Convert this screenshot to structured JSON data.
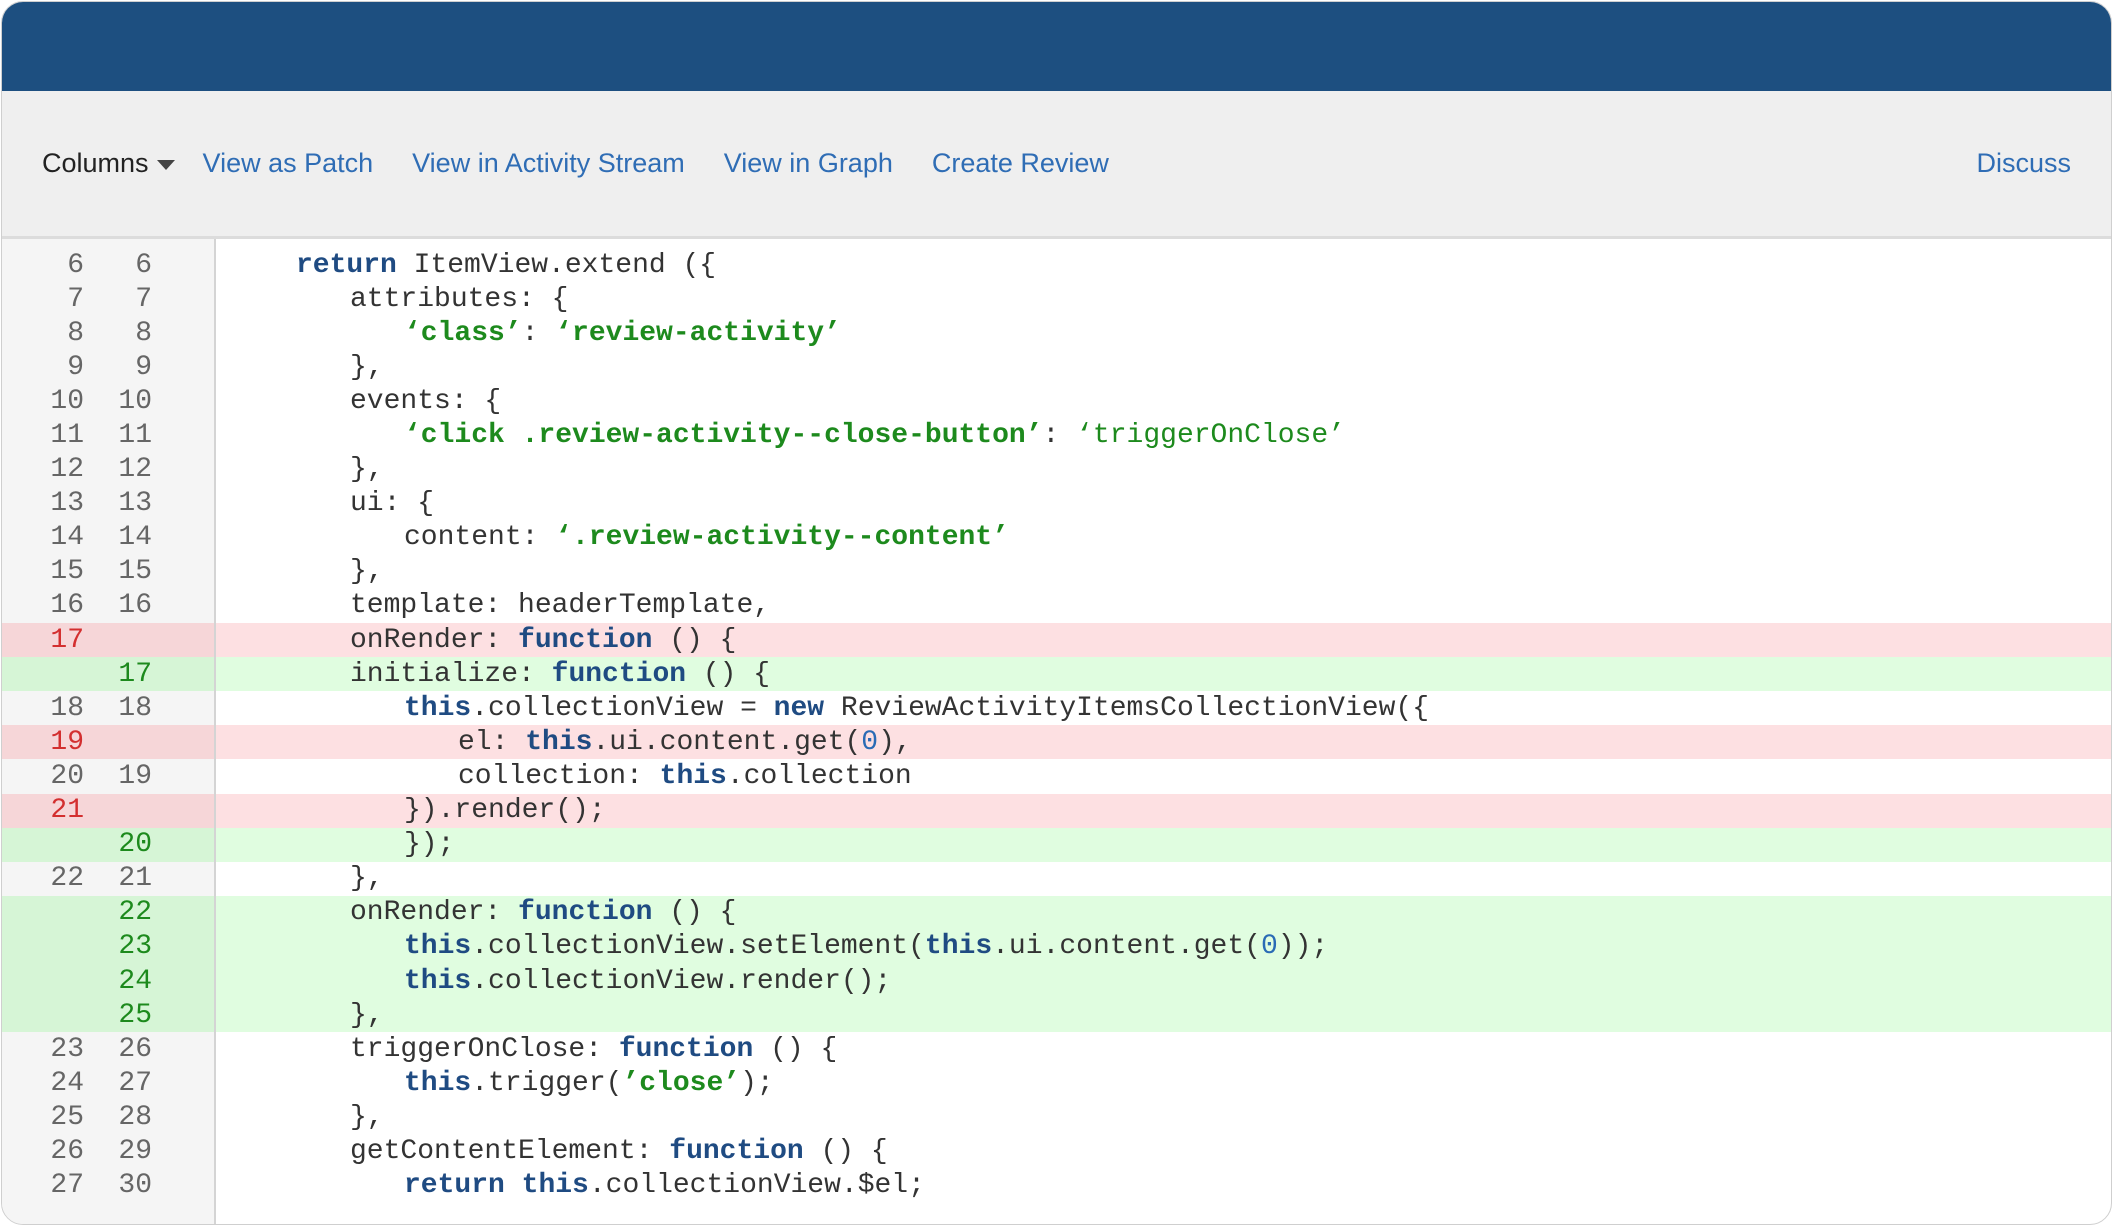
{
  "colors": {
    "header": "#1d4f80",
    "link": "#2f6db5",
    "deleted_bg": "#fde0e2",
    "added_bg": "#e0fde0",
    "keyword": "#1f4b82",
    "string": "#1d8a1d"
  },
  "toolbar": {
    "columns_label": "Columns",
    "columns_icon": "caret-down-icon",
    "links": [
      "View as Patch",
      "View in Activity Stream",
      "View in Graph",
      "Create Review"
    ],
    "discuss_label": "Discuss"
  },
  "diff": {
    "lines": [
      {
        "old": "6",
        "new": "6",
        "type": "ctx",
        "indent": 1,
        "tokens": [
          [
            "kw",
            "return"
          ],
          [
            "p",
            " ItemView.extend ({"
          ]
        ]
      },
      {
        "old": "7",
        "new": "7",
        "type": "ctx",
        "indent": 2,
        "tokens": [
          [
            "p",
            "attributes: {"
          ]
        ]
      },
      {
        "old": "8",
        "new": "8",
        "type": "ctx",
        "indent": 3,
        "tokens": [
          [
            "str",
            "‘class’"
          ],
          [
            "p",
            ": "
          ],
          [
            "str",
            "‘review-activity’"
          ]
        ]
      },
      {
        "old": "9",
        "new": "9",
        "type": "ctx",
        "indent": 2,
        "tokens": [
          [
            "p",
            "},"
          ]
        ]
      },
      {
        "old": "10",
        "new": "10",
        "type": "ctx",
        "indent": 2,
        "tokens": [
          [
            "p",
            "events: {"
          ]
        ]
      },
      {
        "old": "11",
        "new": "11",
        "type": "ctx",
        "indent": 3,
        "tokens": [
          [
            "str",
            "‘click .review-activity--close-button’"
          ],
          [
            "p",
            ": "
          ],
          [
            "str2",
            "‘triggerOnClose’"
          ]
        ]
      },
      {
        "old": "12",
        "new": "12",
        "type": "ctx",
        "indent": 2,
        "tokens": [
          [
            "p",
            "},"
          ]
        ]
      },
      {
        "old": "13",
        "new": "13",
        "type": "ctx",
        "indent": 2,
        "tokens": [
          [
            "p",
            "ui: {"
          ]
        ]
      },
      {
        "old": "14",
        "new": "14",
        "type": "ctx",
        "indent": 3,
        "tokens": [
          [
            "p",
            "content: "
          ],
          [
            "str",
            "‘.review-activity--content’"
          ]
        ]
      },
      {
        "old": "15",
        "new": "15",
        "type": "ctx",
        "indent": 2,
        "tokens": [
          [
            "p",
            "},"
          ]
        ]
      },
      {
        "old": "16",
        "new": "16",
        "type": "ctx",
        "indent": 2,
        "tokens": [
          [
            "p",
            "template: headerTemplate,"
          ]
        ]
      },
      {
        "old": "17",
        "new": "",
        "type": "del",
        "indent": 2,
        "tokens": [
          [
            "p",
            "onRender: "
          ],
          [
            "kw",
            "function"
          ],
          [
            "p",
            " () {"
          ]
        ]
      },
      {
        "old": "",
        "new": "17",
        "type": "add",
        "indent": 2,
        "tokens": [
          [
            "p",
            "initialize: "
          ],
          [
            "kw",
            "function"
          ],
          [
            "p",
            " () {"
          ]
        ]
      },
      {
        "old": "18",
        "new": "18",
        "type": "ctx",
        "indent": 3,
        "tokens": [
          [
            "kw",
            "this"
          ],
          [
            "p",
            ".collectionView = "
          ],
          [
            "kw",
            "new"
          ],
          [
            "p",
            " ReviewActivityItemsCollectionView({"
          ]
        ]
      },
      {
        "old": "19",
        "new": "",
        "type": "del",
        "indent": 4,
        "tokens": [
          [
            "p",
            "el: "
          ],
          [
            "kw",
            "this"
          ],
          [
            "p",
            ".ui.content.get("
          ],
          [
            "num",
            "0"
          ],
          [
            "p",
            "),"
          ]
        ]
      },
      {
        "old": "20",
        "new": "19",
        "type": "ctx",
        "indent": 4,
        "tokens": [
          [
            "p",
            "collection: "
          ],
          [
            "kw",
            "this"
          ],
          [
            "p",
            ".collection"
          ]
        ]
      },
      {
        "old": "21",
        "new": "",
        "type": "del",
        "indent": 3,
        "tokens": [
          [
            "p",
            "}).render();"
          ]
        ]
      },
      {
        "old": "",
        "new": "20",
        "type": "add",
        "indent": 3,
        "tokens": [
          [
            "p",
            "});"
          ]
        ]
      },
      {
        "old": "22",
        "new": "21",
        "type": "ctx",
        "indent": 2,
        "tokens": [
          [
            "p",
            "},"
          ]
        ]
      },
      {
        "old": "",
        "new": "22",
        "type": "add",
        "indent": 2,
        "tokens": [
          [
            "p",
            "onRender: "
          ],
          [
            "kw",
            "function"
          ],
          [
            "p",
            " () {"
          ]
        ]
      },
      {
        "old": "",
        "new": "23",
        "type": "add",
        "indent": 3,
        "tokens": [
          [
            "kw",
            "this"
          ],
          [
            "p",
            ".collectionView.setElement("
          ],
          [
            "kw",
            "this"
          ],
          [
            "p",
            ".ui.content.get("
          ],
          [
            "num",
            "0"
          ],
          [
            "p",
            "));"
          ]
        ]
      },
      {
        "old": "",
        "new": "24",
        "type": "add",
        "indent": 3,
        "tokens": [
          [
            "kw",
            "this"
          ],
          [
            "p",
            ".collectionView.render();"
          ]
        ]
      },
      {
        "old": "",
        "new": "25",
        "type": "add",
        "indent": 2,
        "tokens": [
          [
            "p",
            "},"
          ]
        ]
      },
      {
        "old": "23",
        "new": "26",
        "type": "ctx",
        "indent": 2,
        "tokens": [
          [
            "p",
            "triggerOnClose: "
          ],
          [
            "kw",
            "function"
          ],
          [
            "p",
            " () {"
          ]
        ]
      },
      {
        "old": "24",
        "new": "27",
        "type": "ctx",
        "indent": 3,
        "tokens": [
          [
            "kw",
            "this"
          ],
          [
            "p",
            ".trigger("
          ],
          [
            "str",
            "’close’"
          ],
          [
            "p",
            ");"
          ]
        ]
      },
      {
        "old": "25",
        "new": "28",
        "type": "ctx",
        "indent": 2,
        "tokens": [
          [
            "p",
            "},"
          ]
        ]
      },
      {
        "old": "26",
        "new": "29",
        "type": "ctx",
        "indent": 2,
        "tokens": [
          [
            "p",
            "getContentElement: "
          ],
          [
            "kw",
            "function"
          ],
          [
            "p",
            " () {"
          ]
        ]
      },
      {
        "old": "27",
        "new": "30",
        "type": "ctx",
        "indent": 3,
        "tokens": [
          [
            "kw",
            "return"
          ],
          [
            "p",
            " "
          ],
          [
            "kw",
            "this"
          ],
          [
            "p",
            ".collectionView.$el;"
          ]
        ]
      }
    ]
  }
}
